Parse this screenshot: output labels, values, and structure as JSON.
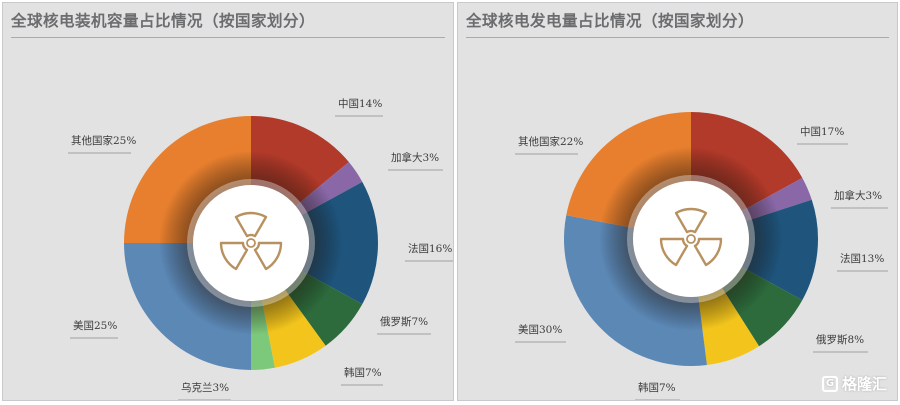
{
  "chart_data": [
    {
      "type": "pie",
      "title": "全球核电装机容量占比情况（按国家划分）",
      "slices": [
        {
          "label": "中国14%",
          "value": 14,
          "color": "#b23a2a"
        },
        {
          "label": "加拿大3%",
          "value": 3,
          "color": "#8a68a8"
        },
        {
          "label": "法国16%",
          "value": 16,
          "color": "#1f557d"
        },
        {
          "label": "俄罗斯7%",
          "value": 7,
          "color": "#2d6b3c"
        },
        {
          "label": "韩国7%",
          "value": 7,
          "color": "#f3c51c"
        },
        {
          "label": "乌克兰3%",
          "value": 3,
          "color": "#7dc97b"
        },
        {
          "label": "美国25%",
          "value": 25,
          "color": "#5c88b6"
        },
        {
          "label": "其他国家25%",
          "value": 25,
          "color": "#e77f2e"
        }
      ]
    },
    {
      "type": "pie",
      "title": "全球核电发电量占比情况（按国家划分）",
      "slices": [
        {
          "label": "中国17%",
          "value": 17,
          "color": "#b23a2a"
        },
        {
          "label": "加拿大3%",
          "value": 3,
          "color": "#8a68a8"
        },
        {
          "label": "法国13%",
          "value": 13,
          "color": "#1f557d"
        },
        {
          "label": "俄罗斯8%",
          "value": 8,
          "color": "#2d6b3c"
        },
        {
          "label": "韩国7%",
          "value": 7,
          "color": "#f3c51c"
        },
        {
          "label": "美国30%",
          "value": 30,
          "color": "#5c88b6"
        },
        {
          "label": "其他国家22%",
          "value": 22,
          "color": "#e77f2e"
        }
      ]
    }
  ],
  "watermark": {
    "icon": "g-logo-icon",
    "text": "格隆汇"
  }
}
